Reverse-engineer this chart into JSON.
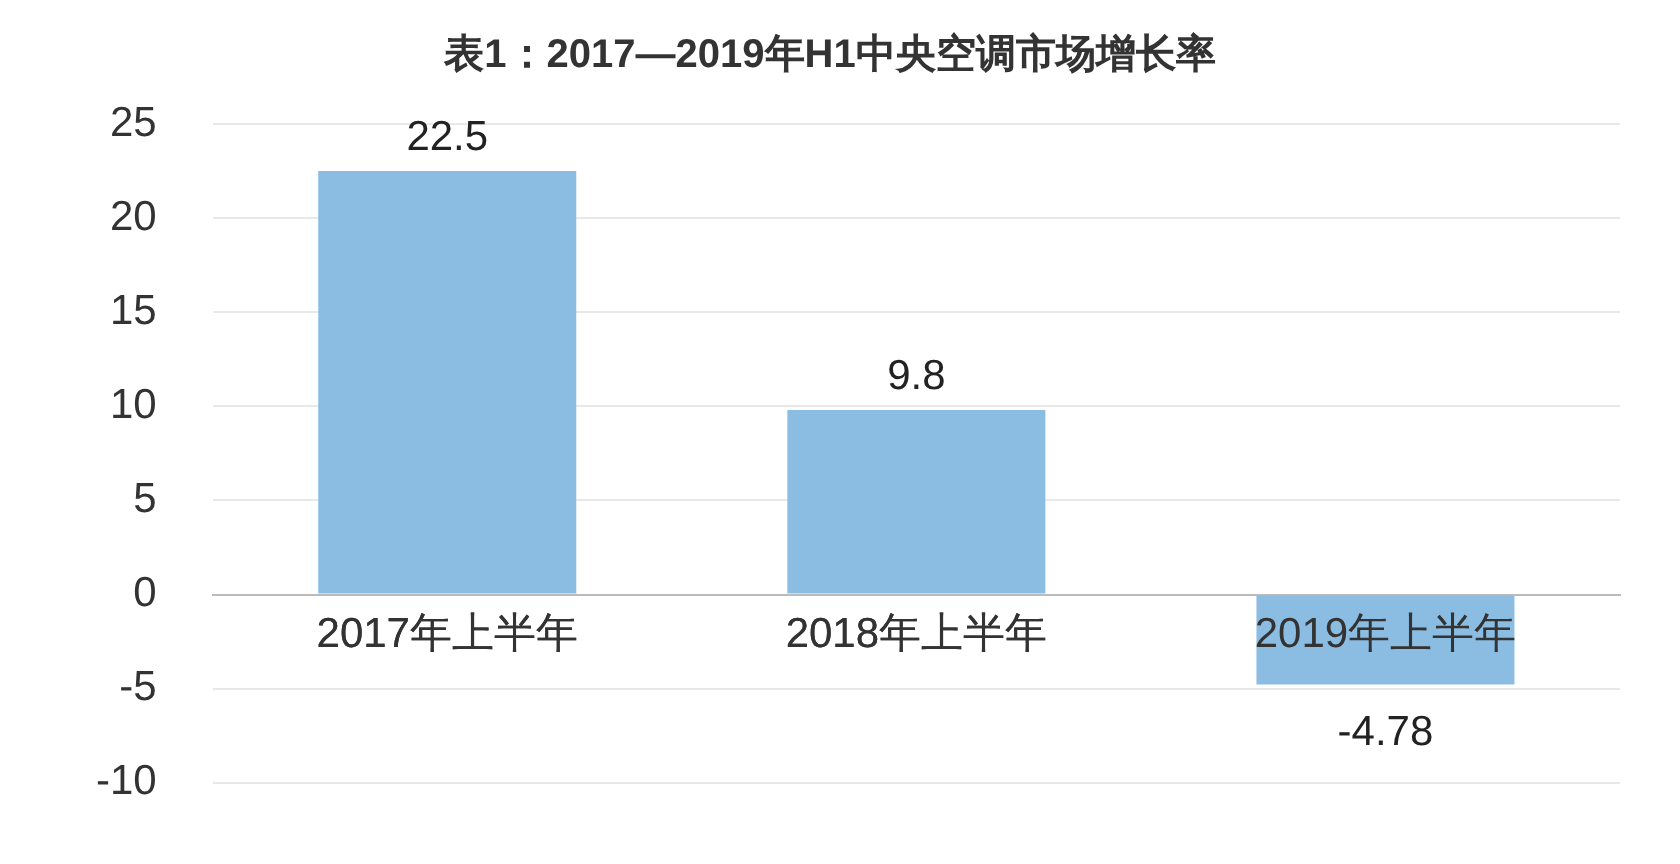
{
  "chart_data": {
    "type": "bar",
    "title": "表1：2017—2019年H1中央空调市场增长率",
    "categories": [
      "2017年上半年",
      "2018年上半年",
      "2019年上半年"
    ],
    "values": [
      22.5,
      9.8,
      -4.78
    ],
    "color": "#8bbde3",
    "ylim": [
      -10,
      25
    ],
    "yticks": [
      -10,
      -5,
      0,
      5,
      10,
      15,
      20,
      25
    ],
    "grid": "y",
    "data_labels": true,
    "legend": false
  }
}
